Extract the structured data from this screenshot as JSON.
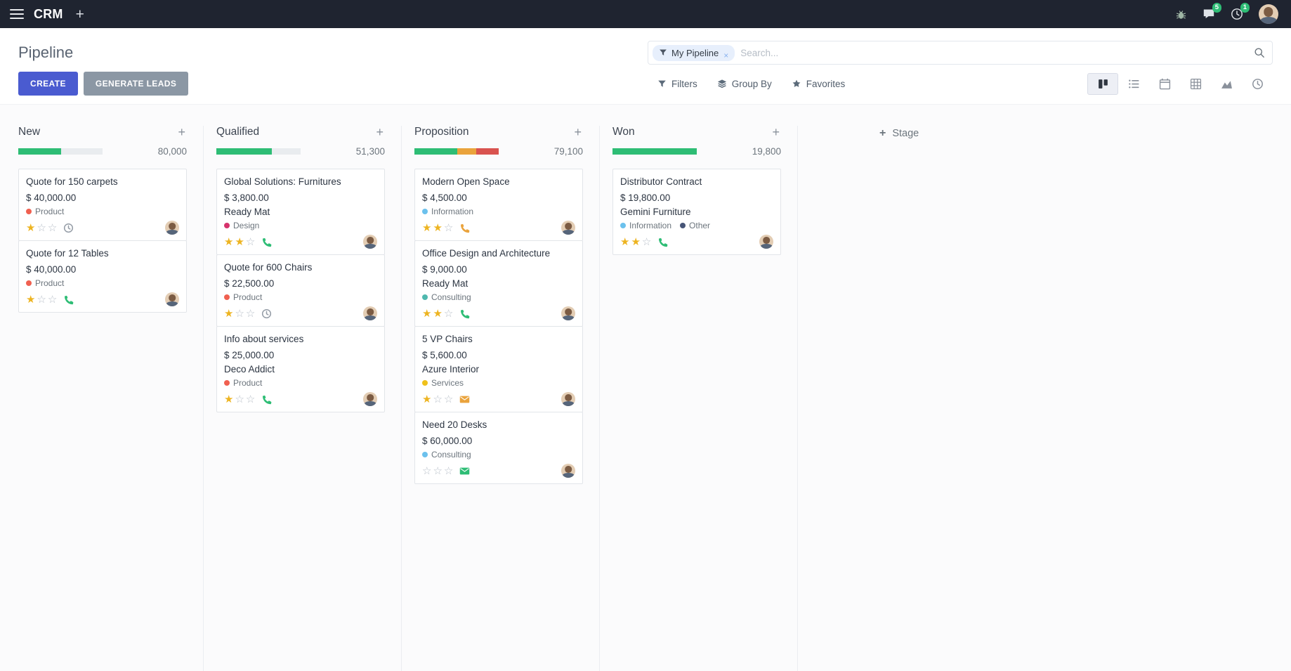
{
  "topbar": {
    "app_name": "CRM",
    "add_menu_glyph": "+",
    "message_badge": "5",
    "activity_badge": "1"
  },
  "control": {
    "title": "Pipeline",
    "search": {
      "facet_label": "My Pipeline",
      "remove_glyph": "×",
      "placeholder": "Search..."
    },
    "create_label": "CREATE",
    "generate_leads_label": "GENERATE LEADS",
    "filters_label": "Filters",
    "group_by_label": "Group By",
    "favorites_label": "Favorites",
    "view_switcher": [
      "kanban",
      "list",
      "calendar",
      "pivot",
      "graph",
      "activity"
    ],
    "active_view": "kanban"
  },
  "board": {
    "plus_glyph": "+",
    "add_stage_label": "Stage",
    "star_filled_glyph": "★",
    "star_empty_glyph": "☆",
    "columns": [
      {
        "name": "New",
        "total": "80,000",
        "progress": {
          "track_color": "#e9ecef",
          "segments": [
            {
              "color": "#2ebd75",
              "pct": 51
            }
          ]
        },
        "cards": [
          {
            "title": "Quote for 150 carpets",
            "amount": "$ 40,000.00",
            "partner": "",
            "tags": [
              {
                "label": "Product",
                "color": "#f06050"
              }
            ],
            "stars": 1,
            "activity": {
              "icon": "clock",
              "color": "#949ca6"
            }
          },
          {
            "title": "Quote for 12 Tables",
            "amount": "$ 40,000.00",
            "partner": "",
            "tags": [
              {
                "label": "Product",
                "color": "#f06050"
              }
            ],
            "stars": 1,
            "activity": {
              "icon": "phone",
              "color": "#2ebd75"
            }
          }
        ]
      },
      {
        "name": "Qualified",
        "total": "51,300",
        "progress": {
          "track_color": "#e9ecef",
          "segments": [
            {
              "color": "#2ebd75",
              "pct": 66
            }
          ]
        },
        "cards": [
          {
            "title": "Global Solutions: Furnitures",
            "amount": "$ 3,800.00",
            "partner": "Ready Mat",
            "tags": [
              {
                "label": "Design",
                "color": "#d6336c"
              }
            ],
            "stars": 2,
            "activity": {
              "icon": "phone",
              "color": "#2ebd75"
            }
          },
          {
            "title": "Quote for 600 Chairs",
            "amount": "$ 22,500.00",
            "partner": "",
            "tags": [
              {
                "label": "Product",
                "color": "#f06050"
              }
            ],
            "stars": 1,
            "activity": {
              "icon": "clock",
              "color": "#949ca6"
            }
          },
          {
            "title": "Info about services",
            "amount": "$ 25,000.00",
            "partner": "Deco Addict",
            "tags": [
              {
                "label": "Product",
                "color": "#f06050"
              }
            ],
            "stars": 1,
            "activity": {
              "icon": "phone",
              "color": "#2ebd75"
            }
          }
        ]
      },
      {
        "name": "Proposition",
        "total": "79,100",
        "progress": {
          "track_color": "#e9ecef",
          "segments": [
            {
              "color": "#2ebd75",
              "pct": 51
            },
            {
              "color": "#eaa33c",
              "pct": 22
            },
            {
              "color": "#d9534f",
              "pct": 27
            }
          ]
        },
        "cards": [
          {
            "title": "Modern Open Space",
            "amount": "$ 4,500.00",
            "partner": "",
            "tags": [
              {
                "label": "Information",
                "color": "#6cc1ed"
              }
            ],
            "stars": 2,
            "activity": {
              "icon": "phone",
              "color": "#eaa33c"
            }
          },
          {
            "title": "Office Design and Architecture",
            "amount": "$ 9,000.00",
            "partner": "Ready Mat",
            "tags": [
              {
                "label": "Consulting",
                "color": "#4fb8ae"
              }
            ],
            "stars": 2,
            "activity": {
              "icon": "phone",
              "color": "#2ebd75"
            }
          },
          {
            "title": "5 VP Chairs",
            "amount": "$ 5,600.00",
            "partner": "Azure Interior",
            "tags": [
              {
                "label": "Services",
                "color": "#efc11b"
              }
            ],
            "stars": 1,
            "activity": {
              "icon": "envelope",
              "color": "#eaa33c"
            }
          },
          {
            "title": "Need 20 Desks",
            "amount": "$ 60,000.00",
            "partner": "",
            "tags": [
              {
                "label": "Consulting",
                "color": "#6cc1ed"
              }
            ],
            "stars": 0,
            "activity": {
              "icon": "envelope",
              "color": "#2ebd75"
            }
          }
        ]
      },
      {
        "name": "Won",
        "total": "19,800",
        "progress": {
          "track_color": "#e9ecef",
          "segments": [
            {
              "color": "#2ebd75",
              "pct": 100
            }
          ]
        },
        "cards": [
          {
            "title": "Distributor Contract",
            "amount": "$ 19,800.00",
            "partner": "Gemini Furniture",
            "tags": [
              {
                "label": "Information",
                "color": "#6cc1ed"
              },
              {
                "label": "Other",
                "color": "#475577"
              }
            ],
            "stars": 2,
            "activity": {
              "icon": "phone",
              "color": "#2ebd75"
            }
          }
        ]
      }
    ]
  }
}
